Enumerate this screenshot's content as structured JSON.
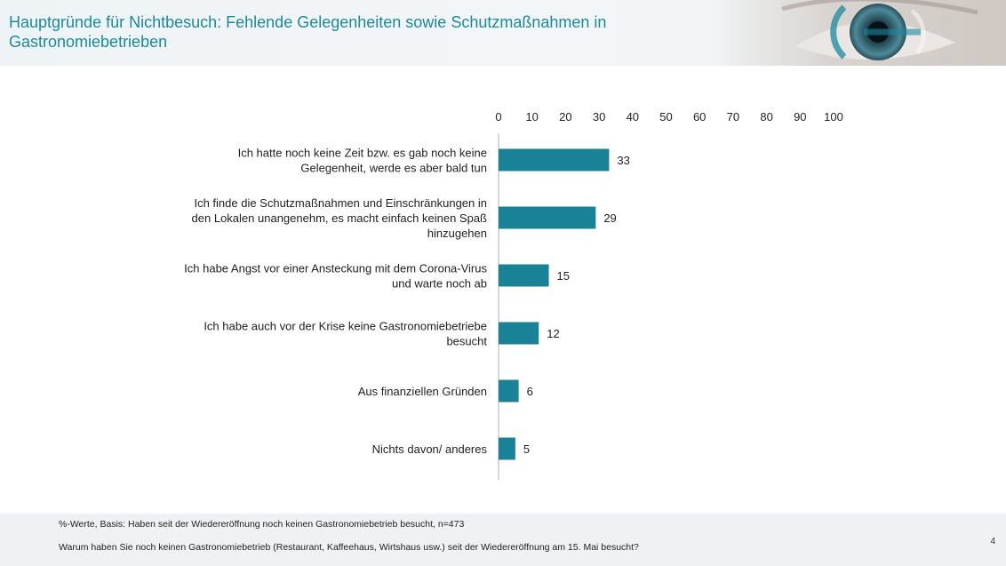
{
  "header": {
    "title": "Hauptgründe für Nichtbesuch: Fehlende Gelegenheiten sowie Schutzmaßnahmen in Gastronomiebetrieben"
  },
  "colors": {
    "bar": "#1a8296",
    "title": "#1b8a9e"
  },
  "chart_data": {
    "type": "bar",
    "orientation": "horizontal",
    "title": "Hauptgründe für Nichtbesuch: Fehlende Gelegenheiten sowie Schutzmaßnahmen in Gastronomiebetrieben",
    "categories": [
      [
        "Ich hatte noch keine Zeit bzw. es gab noch keine",
        "Gelegenheit, werde es aber bald tun"
      ],
      [
        "Ich finde die Schutzmaßnahmen und Einschränkungen in",
        "den Lokalen unangenehm, es macht einfach keinen Spaß",
        "hinzugehen"
      ],
      [
        "Ich habe Angst vor einer Ansteckung mit dem Corona-Virus",
        "und warte noch ab"
      ],
      [
        "Ich habe auch vor der Krise keine Gastronomiebetriebe",
        "besucht"
      ],
      [
        "Aus finanziellen Gründen"
      ],
      [
        "Nichts davon/ anderes"
      ]
    ],
    "values": [
      33,
      29,
      15,
      12,
      6,
      5
    ],
    "xlim": [
      0,
      100
    ],
    "ticks": [
      0,
      10,
      20,
      30,
      40,
      50,
      60,
      70,
      80,
      90,
      100
    ],
    "axis_position": "top",
    "xlabel": "",
    "ylabel": ""
  },
  "footer": {
    "note1": "%-Werte, Basis: Haben seit der Wiedereröffnung noch keinen Gastronomiebetrieb besucht, n=473",
    "note2": "Warum haben Sie noch keinen Gastronomiebetrieb (Restaurant, Kaffeehaus, Wirtshaus usw.) seit der Wiedereröffnung am 15. Mai besucht?",
    "page": "4"
  }
}
